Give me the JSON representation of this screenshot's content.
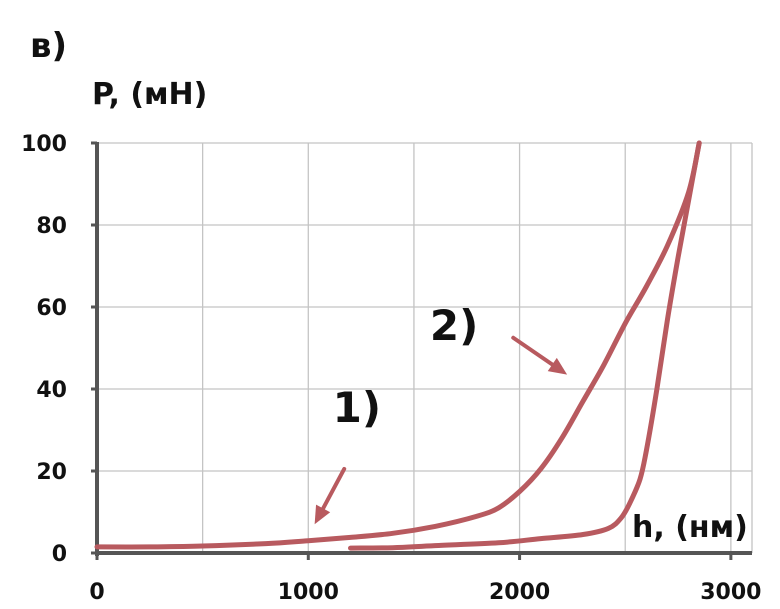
{
  "panel_label": "в)",
  "chart_data": {
    "type": "line",
    "ylabel": "P, (мН)",
    "xlabel": "h, (нм)",
    "xlim": [
      0,
      3100
    ],
    "ylim": [
      0,
      100
    ],
    "x_ticks": [
      0,
      1000,
      2000,
      3000
    ],
    "y_ticks": [
      0,
      20,
      40,
      60,
      80,
      100
    ],
    "x_tick_labels": [
      "0",
      "1000",
      "2000",
      "3000"
    ],
    "y_tick_labels": [
      "0",
      "20",
      "40",
      "60",
      "80",
      "100"
    ],
    "grid": true,
    "line_color": "#b85a5f",
    "series": [
      {
        "points": [
          [
            0,
            1.5
          ],
          [
            250,
            1.5
          ],
          [
            500,
            1.7
          ],
          [
            800,
            2.3
          ],
          [
            1000,
            3.0
          ],
          [
            1200,
            3.8
          ],
          [
            1400,
            4.8
          ],
          [
            1600,
            6.5
          ],
          [
            1800,
            9.0
          ],
          [
            1900,
            11.0
          ],
          [
            2000,
            15.0
          ],
          [
            2100,
            20.5
          ],
          [
            2200,
            28.0
          ],
          [
            2300,
            37.0
          ],
          [
            2400,
            46.0
          ],
          [
            2500,
            56.0
          ],
          [
            2600,
            65.0
          ],
          [
            2700,
            75.0
          ],
          [
            2800,
            88.0
          ],
          [
            2850,
            100.0
          ]
        ]
      },
      {
        "points": [
          [
            2850,
            100.0
          ],
          [
            2800,
            86.0
          ],
          [
            2750,
            72.0
          ],
          [
            2700,
            57.0
          ],
          [
            2650,
            40.0
          ],
          [
            2600,
            25.0
          ],
          [
            2570,
            18.0
          ],
          [
            2520,
            12.0
          ],
          [
            2480,
            8.5
          ],
          [
            2420,
            6.0
          ],
          [
            2300,
            4.5
          ],
          [
            2100,
            3.5
          ],
          [
            1900,
            2.5
          ],
          [
            1600,
            1.8
          ],
          [
            1400,
            1.3
          ],
          [
            1200,
            1.2
          ]
        ]
      }
    ],
    "annotations": [
      {
        "text": "1)",
        "text_x": 1230,
        "text_y": 32,
        "arrow_from": [
          1170,
          20.5
        ],
        "arrow_to": [
          1030,
          7
        ]
      },
      {
        "text": "2)",
        "text_x": 1690,
        "text_y": 52,
        "arrow_from": [
          1970,
          52.5
        ],
        "arrow_to": [
          2225,
          43.5
        ]
      }
    ]
  }
}
